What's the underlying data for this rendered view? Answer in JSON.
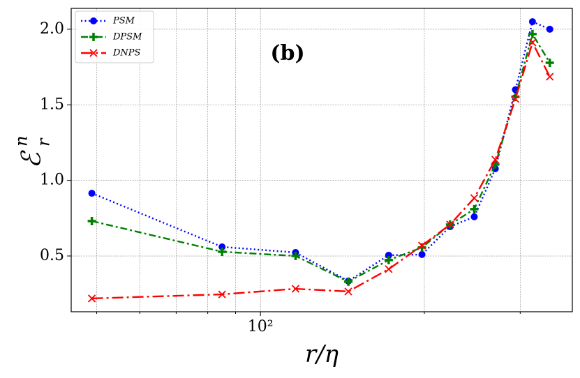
{
  "chart_data": {
    "type": "line",
    "annotation": "(b)",
    "x_label": "r/η",
    "y_label": {
      "base": "ℰ",
      "sub": "r",
      "sup": "n"
    },
    "x": [
      49,
      85,
      116,
      145,
      172,
      198,
      223,
      247,
      270,
      294,
      316,
      340
    ],
    "series": [
      {
        "name": "PSM",
        "color": "#0000ff",
        "marker": "circle",
        "dash": "dotted",
        "values": [
          0.915,
          0.56,
          0.523,
          0.334,
          0.505,
          0.51,
          0.694,
          0.759,
          1.077,
          1.6,
          2.05,
          2.0
        ]
      },
      {
        "name": "DPSM",
        "color": "#008000",
        "marker": "plus",
        "dash": "dashdot",
        "values": [
          0.731,
          0.528,
          0.5,
          0.33,
          0.473,
          0.556,
          0.708,
          0.81,
          1.105,
          1.552,
          1.968,
          1.778
        ]
      },
      {
        "name": "DNPS",
        "color": "#ff0000",
        "marker": "x",
        "dash": "longdashdot",
        "values": [
          0.219,
          0.246,
          0.283,
          0.265,
          0.413,
          0.569,
          0.708,
          0.883,
          1.137,
          1.539,
          1.912,
          1.686
        ]
      }
    ],
    "xlog": true,
    "xlim": [
      44.9,
      374
    ],
    "xticks": [
      {
        "value": 100,
        "label": "10²"
      }
    ],
    "xminor": [
      50,
      60,
      70,
      80,
      90,
      200,
      300
    ],
    "ylim": [
      0.131,
      2.138
    ],
    "yticks": [
      0.5,
      {
        "value": 1,
        "label": "1.0"
      },
      1.5,
      {
        "value": 2,
        "label": "2.0"
      }
    ],
    "grid": true,
    "legend": "upper-left"
  }
}
